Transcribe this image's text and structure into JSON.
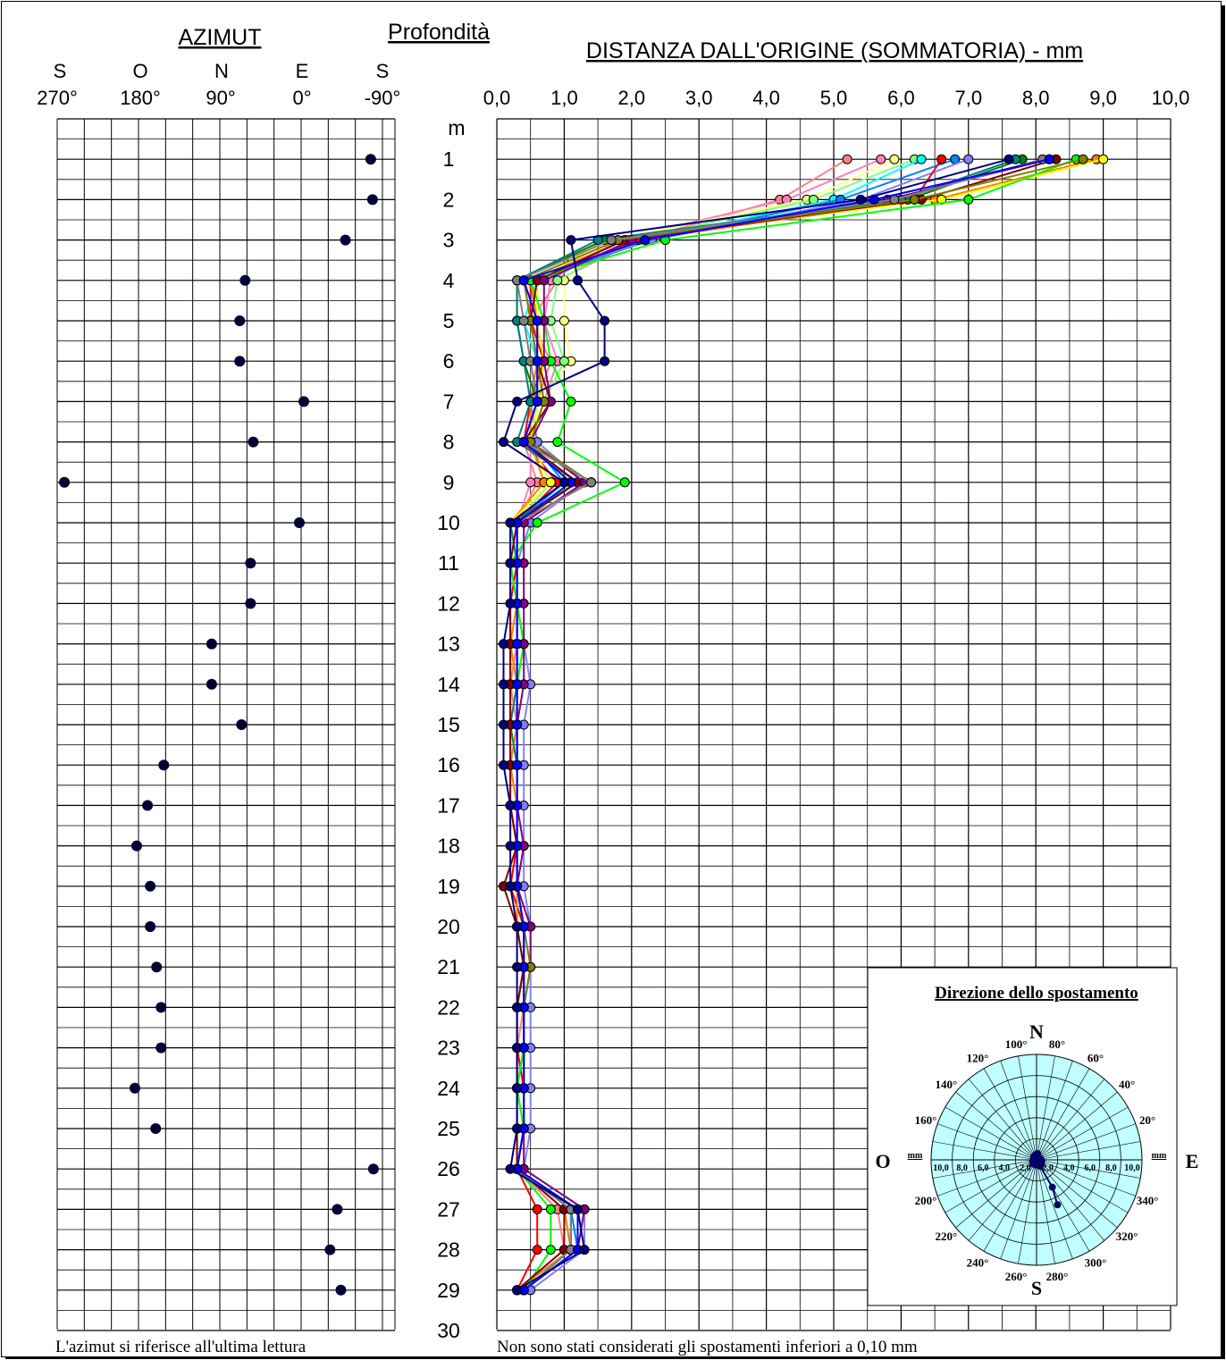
{
  "azimut_chart": {
    "title": "AZIMUT",
    "direction_labels": [
      "S",
      "O",
      "N",
      "E",
      "S"
    ],
    "tick_labels": [
      "270°",
      "180°",
      "90°",
      "0°",
      "-90°"
    ],
    "xlim": [
      270,
      -90
    ],
    "footnote": "L'azimut si riferisce all'ultima lettura"
  },
  "depth_axis": {
    "title": "Profondità",
    "unit": "m",
    "labels": [
      "1",
      "2",
      "3",
      "4",
      "5",
      "6",
      "7",
      "8",
      "9",
      "10",
      "11",
      "12",
      "13",
      "14",
      "15",
      "16",
      "17",
      "18",
      "19",
      "20",
      "21",
      "22",
      "23",
      "24",
      "25",
      "26",
      "27",
      "28",
      "29",
      "30"
    ]
  },
  "distance_chart": {
    "title": "DISTANZA DALL'ORIGINE (SOMMATORIA) - mm",
    "tick_labels": [
      "0,0",
      "1,0",
      "2,0",
      "3,0",
      "4,0",
      "5,0",
      "6,0",
      "7,0",
      "8,0",
      "9,0",
      "10,0"
    ],
    "xlim": [
      0,
      10
    ],
    "footnote": "Non sono stati considerati gli spostamenti inferiori a 0,10 mm"
  },
  "polar_chart": {
    "title": "Direzione dello spostamento",
    "cardinals": {
      "N": "N",
      "S": "S",
      "E": "E",
      "O": "O"
    },
    "angle_labels": [
      {
        "deg": 100,
        "text": "100°"
      },
      {
        "deg": 80,
        "text": "80°"
      },
      {
        "deg": 120,
        "text": "120°"
      },
      {
        "deg": 60,
        "text": "60°"
      },
      {
        "deg": 140,
        "text": "140°"
      },
      {
        "deg": 40,
        "text": "40°"
      },
      {
        "deg": 160,
        "text": "160°"
      },
      {
        "deg": 20,
        "text": "20°"
      },
      {
        "deg": 200,
        "text": "200°"
      },
      {
        "deg": 340,
        "text": "340°"
      },
      {
        "deg": 220,
        "text": "220°"
      },
      {
        "deg": 320,
        "text": "320°"
      },
      {
        "deg": 240,
        "text": "240°"
      },
      {
        "deg": 300,
        "text": "300°"
      },
      {
        "deg": 260,
        "text": "260°"
      },
      {
        "deg": 280,
        "text": "280°"
      }
    ],
    "radial_unit": "mm",
    "radial_labels_left": [
      "10,0",
      "8,0",
      "6,0",
      "4,0",
      "2,0"
    ],
    "radial_labels_right": [
      "2,0",
      "4,0",
      "6,0",
      "8,0",
      "10,0"
    ],
    "rmax": 10,
    "fill_color": "#bfffff"
  },
  "chart_data": [
    {
      "type": "scatter",
      "name_ref": "azimut",
      "x_unit": "degrees",
      "points": [
        {
          "depth": 1,
          "azimut": -77
        },
        {
          "depth": 2,
          "azimut": -79
        },
        {
          "depth": 3,
          "azimut": -49
        },
        {
          "depth": 4,
          "azimut": 62
        },
        {
          "depth": 5,
          "azimut": 68
        },
        {
          "depth": 6,
          "azimut": 68
        },
        {
          "depth": 7,
          "azimut": -3
        },
        {
          "depth": 8,
          "azimut": 53
        },
        {
          "depth": 9,
          "azimut": 262
        },
        {
          "depth": 10,
          "azimut": 2
        },
        {
          "depth": 11,
          "azimut": 56
        },
        {
          "depth": 12,
          "azimut": 56
        },
        {
          "depth": 13,
          "azimut": 99
        },
        {
          "depth": 14,
          "azimut": 99
        },
        {
          "depth": 15,
          "azimut": 66
        },
        {
          "depth": 16,
          "azimut": 152
        },
        {
          "depth": 17,
          "azimut": 170
        },
        {
          "depth": 18,
          "azimut": 182
        },
        {
          "depth": 19,
          "azimut": 167
        },
        {
          "depth": 20,
          "azimut": 167
        },
        {
          "depth": 21,
          "azimut": 160
        },
        {
          "depth": 22,
          "azimut": 155
        },
        {
          "depth": 23,
          "azimut": 155
        },
        {
          "depth": 24,
          "azimut": 184
        },
        {
          "depth": 25,
          "azimut": 161
        },
        {
          "depth": 26,
          "azimut": -80
        },
        {
          "depth": 27,
          "azimut": -40
        },
        {
          "depth": 28,
          "azimut": -32
        },
        {
          "depth": 29,
          "azimut": -44
        }
      ],
      "marker_color": "#000033"
    },
    {
      "type": "line",
      "name_ref": "distanza",
      "x_unit": "mm",
      "depths": [
        1,
        2,
        3,
        4,
        5,
        6,
        7,
        8,
        9,
        10,
        11,
        12,
        13,
        14,
        15,
        16,
        17,
        18,
        19,
        20,
        21,
        22,
        23,
        24,
        25,
        26,
        27,
        28,
        29
      ],
      "series": [
        {
          "color": "#ff8080",
          "values": [
            5.2,
            4.2,
            2.1,
            0.9,
            0.5,
            0.8,
            0.6,
            0.4,
            0.6,
            0.3,
            0.3,
            0.3,
            0.3,
            0.2,
            0.3,
            0.3,
            0.3,
            0.3,
            0.3,
            0.4,
            0.4,
            0.4,
            0.3,
            0.4,
            0.4,
            0.3,
            0.9,
            1.0,
            0.3
          ]
        },
        {
          "color": "#ff80c0",
          "values": [
            5.7,
            4.3,
            1.8,
            0.8,
            0.7,
            0.9,
            0.7,
            0.5,
            0.5,
            0.3,
            0.3,
            0.3,
            0.3,
            0.3,
            0.3,
            0.3,
            0.3,
            0.3,
            0.2,
            0.4,
            0.4,
            0.4,
            0.4,
            0.3,
            0.4,
            0.3,
            1.0,
            1.1,
            0.3
          ]
        },
        {
          "color": "#ffff80",
          "values": [
            5.9,
            4.6,
            1.7,
            1.0,
            1.0,
            1.1,
            0.6,
            0.6,
            0.7,
            0.2,
            0.2,
            0.3,
            0.2,
            0.3,
            0.2,
            0.2,
            0.3,
            0.3,
            0.3,
            0.3,
            0.4,
            0.3,
            0.3,
            0.3,
            0.4,
            0.3,
            1.1,
            1.1,
            0.4
          ]
        },
        {
          "color": "#80ff80",
          "values": [
            6.2,
            4.7,
            2.0,
            0.9,
            0.8,
            1.0,
            0.7,
            0.5,
            0.8,
            0.3,
            0.3,
            0.3,
            0.3,
            0.3,
            0.3,
            0.3,
            0.3,
            0.3,
            0.3,
            0.4,
            0.4,
            0.4,
            0.4,
            0.4,
            0.4,
            0.3,
            1.1,
            1.2,
            0.4
          ]
        },
        {
          "color": "#00ffff",
          "values": [
            6.3,
            5.0,
            2.2,
            0.6,
            0.4,
            0.6,
            0.6,
            0.4,
            0.9,
            0.3,
            0.3,
            0.3,
            0.3,
            0.3,
            0.3,
            0.3,
            0.3,
            0.3,
            0.3,
            0.3,
            0.4,
            0.4,
            0.4,
            0.4,
            0.4,
            0.3,
            1.0,
            1.1,
            0.3
          ]
        },
        {
          "color": "#0080ff",
          "values": [
            6.8,
            5.1,
            2.3,
            0.5,
            0.6,
            0.7,
            0.6,
            0.5,
            1.0,
            0.3,
            0.3,
            0.3,
            0.3,
            0.3,
            0.3,
            0.3,
            0.3,
            0.3,
            0.3,
            0.4,
            0.4,
            0.4,
            0.4,
            0.4,
            0.4,
            0.3,
            1.1,
            1.2,
            0.4
          ]
        },
        {
          "color": "#8080ff",
          "values": [
            7.0,
            5.4,
            2.3,
            0.4,
            0.5,
            0.6,
            0.5,
            0.6,
            1.3,
            0.5,
            0.3,
            0.3,
            0.4,
            0.5,
            0.4,
            0.4,
            0.4,
            0.4,
            0.4,
            0.5,
            0.5,
            0.5,
            0.5,
            0.5,
            0.5,
            0.4,
            1.3,
            1.3,
            0.5
          ]
        },
        {
          "color": "#ff0000",
          "values": [
            6.6,
            6.2,
            2.1,
            0.5,
            0.5,
            0.7,
            0.5,
            0.4,
            0.9,
            0.3,
            0.3,
            0.2,
            0.2,
            0.2,
            0.2,
            0.2,
            0.2,
            0.3,
            0.2,
            0.4,
            0.4,
            0.3,
            0.3,
            0.4,
            0.4,
            0.3,
            0.6,
            0.6,
            0.3
          ]
        },
        {
          "color": "#ff8000",
          "values": [
            8.9,
            6.5,
            1.9,
            0.5,
            0.6,
            0.6,
            0.5,
            0.5,
            0.7,
            0.2,
            0.2,
            0.3,
            0.2,
            0.3,
            0.3,
            0.2,
            0.3,
            0.3,
            0.3,
            0.3,
            0.4,
            0.3,
            0.3,
            0.3,
            0.3,
            0.3,
            1.0,
            1.1,
            0.3
          ]
        },
        {
          "color": "#ffff00",
          "values": [
            9.0,
            6.6,
            1.6,
            0.6,
            0.6,
            0.7,
            0.6,
            0.5,
            0.8,
            0.2,
            0.3,
            0.3,
            0.3,
            0.3,
            0.2,
            0.3,
            0.3,
            0.3,
            0.3,
            0.4,
            0.4,
            0.4,
            0.4,
            0.4,
            0.4,
            0.3,
            1.1,
            1.1,
            0.4
          ]
        },
        {
          "color": "#00ff00",
          "values": [
            8.6,
            7.0,
            2.5,
            0.5,
            0.7,
            0.8,
            1.1,
            0.9,
            1.9,
            0.6,
            0.2,
            0.3,
            0.4,
            0.3,
            0.3,
            0.3,
            0.3,
            0.3,
            0.3,
            0.4,
            0.4,
            0.4,
            0.4,
            0.3,
            0.4,
            0.3,
            0.8,
            0.8,
            0.4
          ]
        },
        {
          "color": "#008000",
          "values": [
            7.8,
            6.1,
            1.6,
            0.3,
            0.3,
            0.4,
            0.6,
            0.4,
            1.4,
            0.3,
            0.3,
            0.3,
            0.3,
            0.3,
            0.3,
            0.3,
            0.3,
            0.3,
            0.3,
            0.4,
            0.4,
            0.4,
            0.4,
            0.4,
            0.4,
            0.3,
            1.1,
            1.1,
            0.4
          ]
        },
        {
          "color": "#008080",
          "values": [
            7.7,
            6.0,
            1.5,
            0.3,
            0.3,
            0.4,
            0.5,
            0.3,
            1.2,
            0.2,
            0.3,
            0.3,
            0.3,
            0.3,
            0.2,
            0.3,
            0.3,
            0.3,
            0.3,
            0.4,
            0.4,
            0.4,
            0.4,
            0.4,
            0.4,
            0.3,
            1.1,
            1.1,
            0.4
          ]
        },
        {
          "color": "#800000",
          "values": [
            8.3,
            6.3,
            1.9,
            0.6,
            0.5,
            0.6,
            0.8,
            0.4,
            1.2,
            0.3,
            0.2,
            0.2,
            0.2,
            0.2,
            0.2,
            0.2,
            0.2,
            0.3,
            0.1,
            0.3,
            0.4,
            0.3,
            0.3,
            0.3,
            0.3,
            0.3,
            1.0,
            1.0,
            0.3
          ]
        },
        {
          "color": "#800080",
          "values": [
            8.2,
            5.8,
            2.0,
            0.7,
            0.7,
            0.7,
            0.8,
            0.5,
            1.3,
            0.4,
            0.4,
            0.4,
            0.4,
            0.4,
            0.3,
            0.3,
            0.3,
            0.4,
            0.3,
            0.5,
            0.5,
            0.4,
            0.4,
            0.4,
            0.4,
            0.4,
            1.3,
            1.2,
            0.4
          ]
        },
        {
          "color": "#808000",
          "values": [
            8.7,
            6.2,
            1.8,
            0.4,
            0.5,
            0.6,
            0.7,
            0.5,
            1.4,
            0.3,
            0.3,
            0.3,
            0.3,
            0.3,
            0.3,
            0.3,
            0.3,
            0.3,
            0.3,
            0.4,
            0.5,
            0.4,
            0.4,
            0.4,
            0.4,
            0.3,
            1.2,
            1.2,
            0.4
          ]
        },
        {
          "color": "#808080",
          "values": [
            8.1,
            5.9,
            1.7,
            0.3,
            0.4,
            0.5,
            0.6,
            0.4,
            1.4,
            0.3,
            0.3,
            0.3,
            0.3,
            0.3,
            0.3,
            0.3,
            0.3,
            0.3,
            0.3,
            0.4,
            0.4,
            0.4,
            0.4,
            0.4,
            0.4,
            0.3,
            1.1,
            1.1,
            0.4
          ]
        },
        {
          "color": "#0000ff",
          "values": [
            8.2,
            5.6,
            2.2,
            0.4,
            0.6,
            0.6,
            0.6,
            0.4,
            1.1,
            0.3,
            0.3,
            0.3,
            0.3,
            0.3,
            0.3,
            0.3,
            0.3,
            0.3,
            0.3,
            0.4,
            0.4,
            0.4,
            0.4,
            0.4,
            0.4,
            0.3,
            1.2,
            1.2,
            0.4
          ]
        },
        {
          "color": "#000080",
          "values": [
            7.6,
            5.4,
            1.1,
            1.2,
            1.6,
            1.6,
            0.3,
            0.1,
            1.0,
            0.2,
            0.2,
            0.2,
            0.1,
            0.1,
            0.1,
            0.1,
            0.2,
            0.2,
            0.2,
            0.3,
            0.3,
            0.3,
            0.3,
            0.3,
            0.3,
            0.2,
            1.2,
            1.3,
            0.3
          ]
        }
      ]
    },
    {
      "type": "scatter",
      "name_ref": "polar",
      "coordinate": "polar",
      "points": [
        {
          "angle_deg": 45,
          "r_mm": 0.3
        },
        {
          "angle_deg": 80,
          "r_mm": 0.6
        },
        {
          "angle_deg": 100,
          "r_mm": 0.5
        },
        {
          "angle_deg": 130,
          "r_mm": 0.4
        },
        {
          "angle_deg": 150,
          "r_mm": 0.3
        },
        {
          "angle_deg": 180,
          "r_mm": 0.3
        },
        {
          "angle_deg": 200,
          "r_mm": 0.4
        },
        {
          "angle_deg": 230,
          "r_mm": 0.5
        },
        {
          "angle_deg": 260,
          "r_mm": 0.5
        },
        {
          "angle_deg": 300,
          "r_mm": 0.7
        },
        {
          "angle_deg": 320,
          "r_mm": 0.6
        },
        {
          "angle_deg": 350,
          "r_mm": 0.5
        },
        {
          "angle_deg": 10,
          "r_mm": 0.4
        },
        {
          "angle_deg": 300,
          "r_mm": 3.0
        },
        {
          "angle_deg": 295,
          "r_mm": 4.7
        }
      ],
      "path_order": [
        0,
        1,
        2,
        3,
        4,
        5,
        6,
        7,
        8,
        9,
        10,
        11,
        12,
        9,
        13,
        14
      ],
      "marker_color": "#000066"
    }
  ]
}
